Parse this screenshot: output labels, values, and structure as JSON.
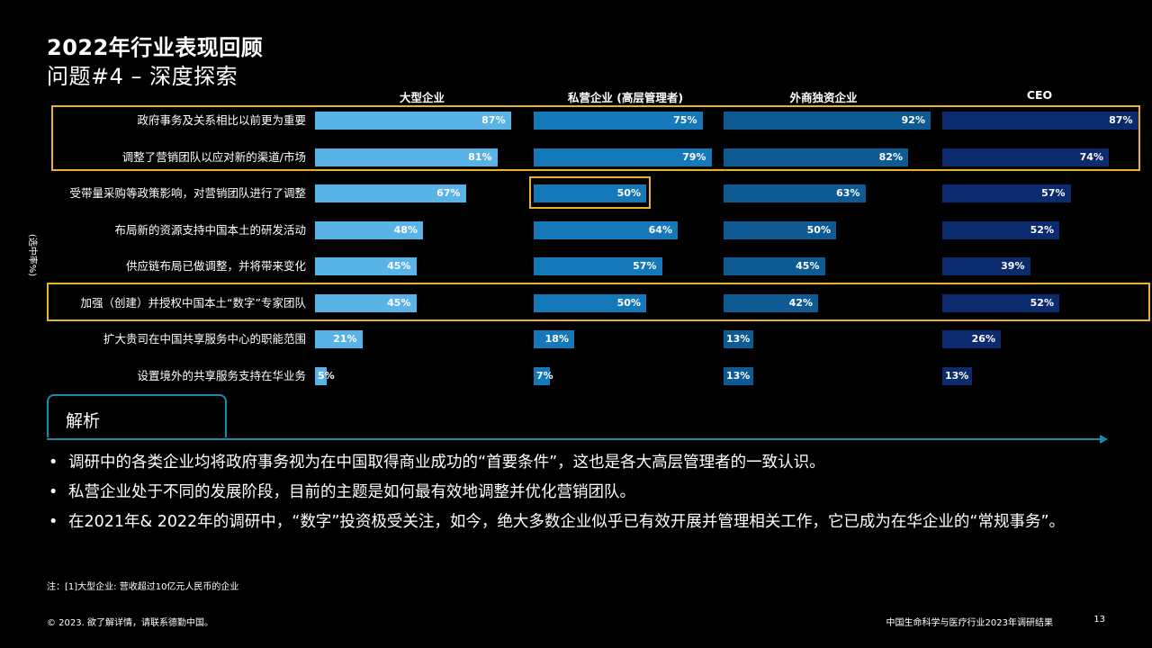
{
  "title_line1": "2022年行业表现回顾",
  "title_line2": "问题#4 – 深度探索",
  "y_axis_label": "(选中率%)",
  "colors": {
    "large_enterprise": "#5AB3E6",
    "private_enterprise": "#1578B8",
    "foreign_enterprise": "#0E5A92",
    "ceo": "#0B2B6E",
    "highlight": "#E8B32B",
    "accent": "#1A8CAA"
  },
  "chart_data": {
    "type": "bar",
    "categories": [
      "政府事务及关系相比以前更为重要",
      "调整了营销团队以应对新的渠道/市场",
      "受带量采购等政策影响，对营销团队进行了调整",
      "布局新的资源支持中国本土的研发活动",
      "供应链布局已做调整，并将带来变化",
      "加强（创建）并授权中国本土“数字”专家团队",
      "扩大贵司在中国共享服务中心的职能范围",
      "设置境外的共享服务支持在华业务"
    ],
    "series": [
      {
        "name": "大型企业",
        "values": [
          87,
          81,
          67,
          48,
          45,
          45,
          21,
          5
        ]
      },
      {
        "name": "私营企业 (高层管理者)",
        "values": [
          75,
          79,
          50,
          64,
          57,
          50,
          18,
          7
        ]
      },
      {
        "name": "外商独资企业",
        "values": [
          92,
          82,
          63,
          50,
          45,
          42,
          13,
          13
        ]
      },
      {
        "name": "CEO",
        "values": [
          87,
          74,
          57,
          52,
          39,
          52,
          26,
          13
        ]
      }
    ],
    "value_suffix": "%",
    "ylim": [
      0,
      100
    ]
  },
  "analysis": {
    "tab_label": "解析",
    "bullets": [
      "调研中的各类企业均将政府事务视为在中国取得商业成功的“首要条件”，这也是各大高层管理者的一致认识。",
      "私营企业处于不同的发展阶段，目前的主题是如何最有效地调整并优化营销团队。",
      "在2021年& 2022年的调研中，“数字”投资极受关注，如今，绝大多数企业似乎已有效开展并管理相关工作，它已成为在华企业的“常规事务”。"
    ]
  },
  "note": "注：[1]大型企业: 营收超过10亿元人民币的企业",
  "footer": {
    "copyright": "© 2023. 欲了解详情，请联系德勤中国。",
    "report_name": "中国生命科学与医疗行业2023年调研结果",
    "page_number": "13"
  }
}
